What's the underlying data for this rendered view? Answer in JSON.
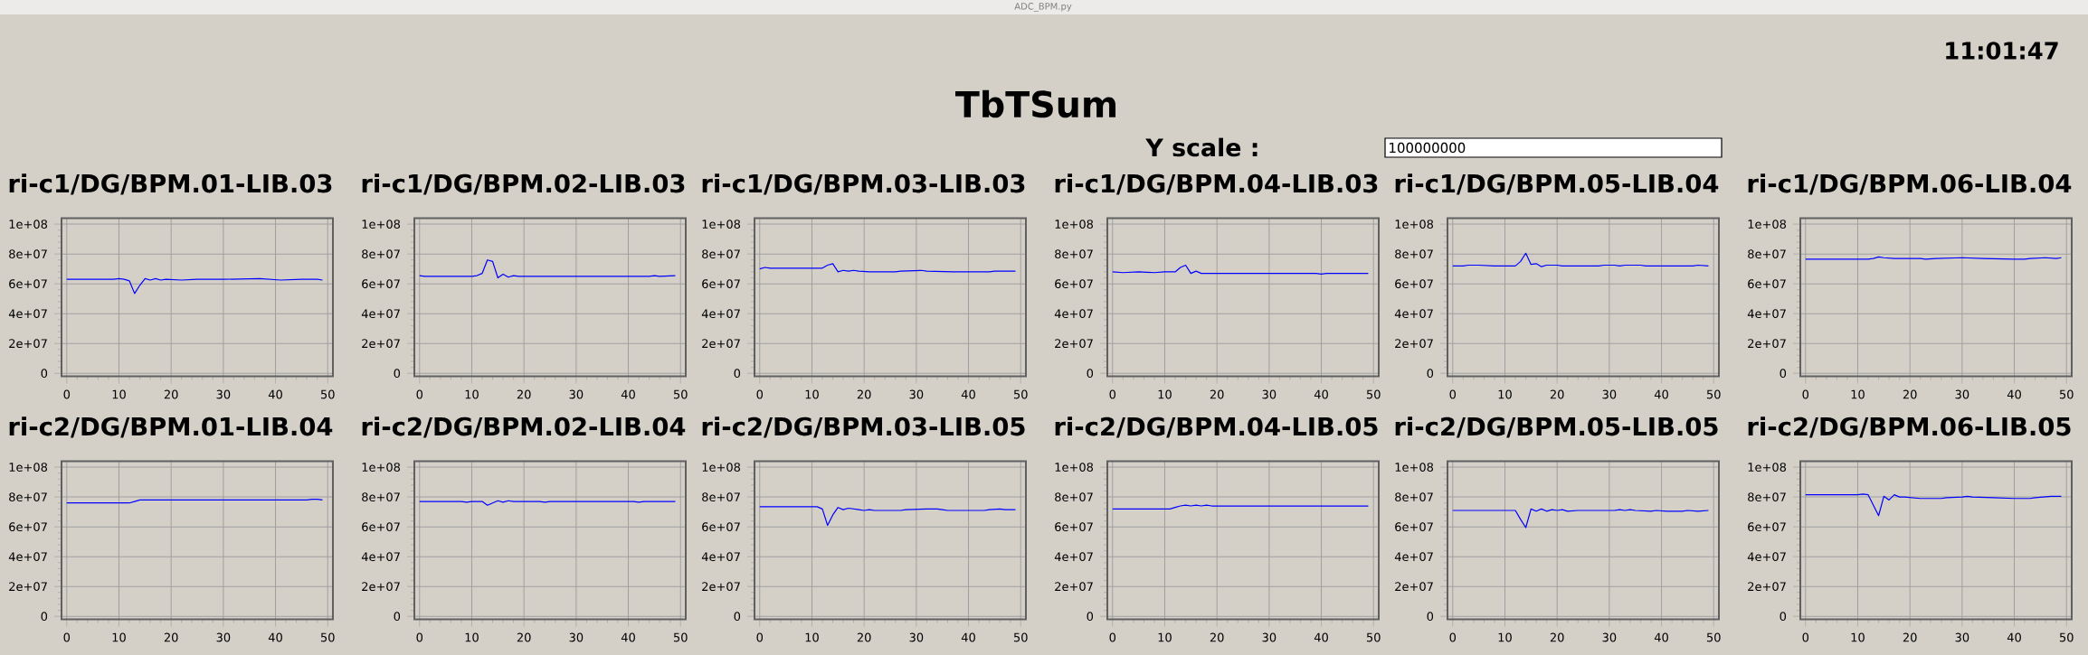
{
  "chart_data": [
    {
      "type": "other",
      "title": "TbTSum",
      "annotations": [
        "ADC_BPM.py",
        "11:01:47",
        "Y scale :",
        "100000000"
      ]
    },
    {
      "type": "line",
      "title": "ri-c1/DG/BPM.01-LIB.03",
      "color": "#0000ff",
      "grid": true,
      "xlim": [
        -1,
        51
      ],
      "ylim": [
        -2000000.0,
        104000000.0
      ],
      "xticks": [
        0,
        10,
        20,
        30,
        40,
        50
      ],
      "yticks": [
        0,
        {
          "value": 20000000.0,
          "label": "2e+07"
        },
        {
          "value": 40000000.0,
          "label": "4e+07"
        },
        {
          "value": 60000000.0,
          "label": "6e+07"
        },
        {
          "value": 80000000.0,
          "label": "8e+07"
        },
        {
          "value": 100000000.0,
          "label": "1e+08"
        }
      ],
      "x": [
        0,
        9,
        10,
        11,
        12,
        13,
        14,
        15,
        16,
        17,
        18,
        19,
        22,
        25,
        30,
        37,
        41,
        45,
        48,
        49
      ],
      "values": [
        63000000.0,
        63000000.0,
        63500000.0,
        63000000.0,
        62000000.0,
        53500000.0,
        59000000.0,
        63500000.0,
        62500000.0,
        63500000.0,
        62500000.0,
        63000000.0,
        62500000.0,
        63000000.0,
        63000000.0,
        63500000.0,
        62500000.0,
        63000000.0,
        63000000.0,
        62500000.0
      ]
    },
    {
      "type": "line",
      "title": "ri-c1/DG/BPM.02-LIB.03",
      "color": "#0000ff",
      "grid": true,
      "xlim": [
        -1,
        51
      ],
      "ylim": [
        -2000000.0,
        104000000.0
      ],
      "xticks": [
        0,
        10,
        20,
        30,
        40,
        50
      ],
      "yticks": [
        0,
        {
          "value": 20000000.0,
          "label": "2e+07"
        },
        {
          "value": 40000000.0,
          "label": "4e+07"
        },
        {
          "value": 60000000.0,
          "label": "6e+07"
        },
        {
          "value": 80000000.0,
          "label": "8e+07"
        },
        {
          "value": 100000000.0,
          "label": "1e+08"
        }
      ],
      "x": [
        0,
        1,
        10,
        11,
        12,
        13,
        14,
        15,
        16,
        17,
        18,
        19,
        44,
        45,
        46,
        49
      ],
      "values": [
        65500000.0,
        65000000.0,
        65000000.0,
        65500000.0,
        67000000.0,
        76000000.0,
        75000000.0,
        64000000.0,
        66500000.0,
        64500000.0,
        65500000.0,
        65000000.0,
        65000000.0,
        65500000.0,
        65000000.0,
        65500000.0
      ]
    },
    {
      "type": "line",
      "title": "ri-c1/DG/BPM.03-LIB.03",
      "color": "#0000ff",
      "grid": true,
      "xlim": [
        -1,
        51
      ],
      "ylim": [
        -2000000.0,
        104000000.0
      ],
      "xticks": [
        0,
        10,
        20,
        30,
        40,
        50
      ],
      "yticks": [
        0,
        {
          "value": 20000000.0,
          "label": "2e+07"
        },
        {
          "value": 40000000.0,
          "label": "4e+07"
        },
        {
          "value": 60000000.0,
          "label": "6e+07"
        },
        {
          "value": 80000000.0,
          "label": "8e+07"
        },
        {
          "value": 100000000.0,
          "label": "1e+08"
        }
      ],
      "x": [
        0,
        1,
        2,
        12,
        13,
        14,
        15,
        16,
        17,
        18,
        19,
        21,
        26,
        27,
        31,
        32,
        37,
        44,
        45,
        49
      ],
      "values": [
        70000000.0,
        71000000.0,
        70500000.0,
        70500000.0,
        72500000.0,
        73500000.0,
        68000000.0,
        69000000.0,
        68500000.0,
        69000000.0,
        68500000.0,
        68000000.0,
        68000000.0,
        68500000.0,
        69000000.0,
        68500000.0,
        68000000.0,
        68000000.0,
        68500000.0,
        68500000.0
      ]
    },
    {
      "type": "line",
      "title": "ri-c1/DG/BPM.04-LIB.03",
      "color": "#0000ff",
      "grid": true,
      "xlim": [
        -1,
        51
      ],
      "ylim": [
        -2000000.0,
        104000000.0
      ],
      "xticks": [
        0,
        10,
        20,
        30,
        40,
        50
      ],
      "yticks": [
        0,
        {
          "value": 20000000.0,
          "label": "2e+07"
        },
        {
          "value": 40000000.0,
          "label": "4e+07"
        },
        {
          "value": 60000000.0,
          "label": "6e+07"
        },
        {
          "value": 80000000.0,
          "label": "8e+07"
        },
        {
          "value": 100000000.0,
          "label": "1e+08"
        }
      ],
      "x": [
        0,
        2,
        5,
        8,
        10,
        12,
        13,
        14,
        15,
        16,
        17,
        39,
        40,
        41,
        49
      ],
      "values": [
        68000000.0,
        67500000.0,
        68000000.0,
        67500000.0,
        68000000.0,
        68000000.0,
        71000000.0,
        72500000.0,
        67000000.0,
        68500000.0,
        67000000.0,
        67000000.0,
        66500000.0,
        67000000.0,
        67000000.0
      ]
    },
    {
      "type": "line",
      "title": "ri-c1/DG/BPM.05-LIB.04",
      "color": "#0000ff",
      "grid": true,
      "xlim": [
        -1,
        51
      ],
      "ylim": [
        -2000000.0,
        104000000.0
      ],
      "xticks": [
        0,
        10,
        20,
        30,
        40,
        50
      ],
      "yticks": [
        0,
        {
          "value": 20000000.0,
          "label": "2e+07"
        },
        {
          "value": 40000000.0,
          "label": "4e+07"
        },
        {
          "value": 60000000.0,
          "label": "6e+07"
        },
        {
          "value": 80000000.0,
          "label": "8e+07"
        },
        {
          "value": 100000000.0,
          "label": "1e+08"
        }
      ],
      "x": [
        0,
        2,
        3,
        5,
        8,
        12,
        13,
        14,
        15,
        16,
        17,
        18,
        20,
        21,
        28,
        29,
        31,
        32,
        33,
        36,
        37,
        46,
        47,
        49
      ],
      "values": [
        72000000.0,
        72000000.0,
        72500000.0,
        72500000.0,
        72000000.0,
        72000000.0,
        75000000.0,
        80500000.0,
        73000000.0,
        73500000.0,
        71500000.0,
        72500000.0,
        72500000.0,
        72000000.0,
        72000000.0,
        72500000.0,
        72500000.0,
        72000000.0,
        72500000.0,
        72500000.0,
        72000000.0,
        72000000.0,
        72500000.0,
        72000000.0
      ]
    },
    {
      "type": "line",
      "title": "ri-c1/DG/BPM.06-LIB.04",
      "color": "#0000ff",
      "grid": true,
      "xlim": [
        -1,
        51
      ],
      "ylim": [
        -2000000.0,
        104000000.0
      ],
      "xticks": [
        0,
        10,
        20,
        30,
        40,
        50
      ],
      "yticks": [
        0,
        {
          "value": 20000000.0,
          "label": "2e+07"
        },
        {
          "value": 40000000.0,
          "label": "4e+07"
        },
        {
          "value": 60000000.0,
          "label": "6e+07"
        },
        {
          "value": 80000000.0,
          "label": "8e+07"
        },
        {
          "value": 100000000.0,
          "label": "1e+08"
        }
      ],
      "x": [
        0,
        12,
        13,
        14,
        15,
        17,
        22,
        23,
        25,
        30,
        34,
        40,
        42,
        43,
        46,
        48,
        49
      ],
      "values": [
        76500000.0,
        76500000.0,
        77000000.0,
        78000000.0,
        77500000.0,
        77000000.0,
        77000000.0,
        76500000.0,
        77000000.0,
        77500000.0,
        77000000.0,
        76500000.0,
        76500000.0,
        77000000.0,
        77500000.0,
        77000000.0,
        77500000.0
      ]
    },
    {
      "type": "line",
      "title": "ri-c2/DG/BPM.01-LIB.04",
      "color": "#0000ff",
      "grid": true,
      "xlim": [
        -1,
        51
      ],
      "ylim": [
        -2000000.0,
        104000000.0
      ],
      "xticks": [
        0,
        10,
        20,
        30,
        40,
        50
      ],
      "yticks": [
        0,
        {
          "value": 20000000.0,
          "label": "2e+07"
        },
        {
          "value": 40000000.0,
          "label": "4e+07"
        },
        {
          "value": 60000000.0,
          "label": "6e+07"
        },
        {
          "value": 80000000.0,
          "label": "8e+07"
        },
        {
          "value": 100000000.0,
          "label": "1e+08"
        }
      ],
      "x": [
        0,
        12,
        13,
        14,
        46,
        47,
        48,
        49
      ],
      "values": [
        76000000.0,
        76000000.0,
        77000000.0,
        78000000.0,
        78000000.0,
        78500000.0,
        78500000.0,
        78000000.0
      ]
    },
    {
      "type": "line",
      "title": "ri-c2/DG/BPM.02-LIB.04",
      "color": "#0000ff",
      "grid": true,
      "xlim": [
        -1,
        51
      ],
      "ylim": [
        -2000000.0,
        104000000.0
      ],
      "xticks": [
        0,
        10,
        20,
        30,
        40,
        50
      ],
      "yticks": [
        0,
        {
          "value": 20000000.0,
          "label": "2e+07"
        },
        {
          "value": 40000000.0,
          "label": "4e+07"
        },
        {
          "value": 60000000.0,
          "label": "6e+07"
        },
        {
          "value": 80000000.0,
          "label": "8e+07"
        },
        {
          "value": 100000000.0,
          "label": "1e+08"
        }
      ],
      "x": [
        0,
        8,
        9,
        10,
        12,
        13,
        14,
        15,
        16,
        17,
        18,
        23,
        24,
        25,
        41,
        42,
        43,
        49
      ],
      "values": [
        77000000.0,
        77000000.0,
        76500000.0,
        77000000.0,
        77000000.0,
        74500000.0,
        76000000.0,
        77500000.0,
        76500000.0,
        77500000.0,
        77000000.0,
        77000000.0,
        76500000.0,
        77000000.0,
        77000000.0,
        76500000.0,
        77000000.0,
        77000000.0
      ]
    },
    {
      "type": "line",
      "title": "ri-c2/DG/BPM.03-LIB.05",
      "color": "#0000ff",
      "grid": true,
      "xlim": [
        -1,
        51
      ],
      "ylim": [
        -2000000.0,
        104000000.0
      ],
      "xticks": [
        0,
        10,
        20,
        30,
        40,
        50
      ],
      "yticks": [
        0,
        {
          "value": 20000000.0,
          "label": "2e+07"
        },
        {
          "value": 40000000.0,
          "label": "4e+07"
        },
        {
          "value": 60000000.0,
          "label": "6e+07"
        },
        {
          "value": 80000000.0,
          "label": "8e+07"
        },
        {
          "value": 100000000.0,
          "label": "1e+08"
        }
      ],
      "x": [
        0,
        11,
        12,
        13,
        14,
        15,
        16,
        17,
        19,
        20,
        21,
        22,
        27,
        28,
        32,
        34,
        35,
        36,
        43,
        44,
        46,
        47,
        49
      ],
      "values": [
        73500000.0,
        73500000.0,
        72000000.0,
        61000000.0,
        68000000.0,
        73000000.0,
        71500000.0,
        72500000.0,
        71500000.0,
        71000000.0,
        71500000.0,
        71000000.0,
        71000000.0,
        71500000.0,
        72000000.0,
        72000000.0,
        71500000.0,
        71000000.0,
        71000000.0,
        71500000.0,
        72000000.0,
        71500000.0,
        71500000.0
      ]
    },
    {
      "type": "line",
      "title": "ri-c2/DG/BPM.04-LIB.05",
      "color": "#0000ff",
      "grid": true,
      "xlim": [
        -1,
        51
      ],
      "ylim": [
        -2000000.0,
        104000000.0
      ],
      "xticks": [
        0,
        10,
        20,
        30,
        40,
        50
      ],
      "yticks": [
        0,
        {
          "value": 20000000.0,
          "label": "2e+07"
        },
        {
          "value": 40000000.0,
          "label": "4e+07"
        },
        {
          "value": 60000000.0,
          "label": "6e+07"
        },
        {
          "value": 80000000.0,
          "label": "8e+07"
        },
        {
          "value": 100000000.0,
          "label": "1e+08"
        }
      ],
      "x": [
        0,
        11,
        12,
        13,
        14,
        15,
        16,
        17,
        18,
        19,
        49
      ],
      "values": [
        72000000.0,
        72000000.0,
        73000000.0,
        74000000.0,
        74500000.0,
        74000000.0,
        74500000.0,
        74000000.0,
        74500000.0,
        74000000.0,
        74000000.0
      ]
    },
    {
      "type": "line",
      "title": "ri-c2/DG/BPM.05-LIB.05",
      "color": "#0000ff",
      "grid": true,
      "xlim": [
        -1,
        51
      ],
      "ylim": [
        -2000000.0,
        104000000.0
      ],
      "xticks": [
        0,
        10,
        20,
        30,
        40,
        50
      ],
      "yticks": [
        0,
        {
          "value": 20000000.0,
          "label": "2e+07"
        },
        {
          "value": 40000000.0,
          "label": "4e+07"
        },
        {
          "value": 60000000.0,
          "label": "6e+07"
        },
        {
          "value": 80000000.0,
          "label": "8e+07"
        },
        {
          "value": 100000000.0,
          "label": "1e+08"
        }
      ],
      "x": [
        0,
        12,
        13,
        14,
        15,
        16,
        17,
        18,
        19,
        20,
        21,
        22,
        24,
        31,
        32,
        33,
        34,
        35,
        38,
        39,
        41,
        44,
        45,
        47,
        49
      ],
      "values": [
        71000000.0,
        71000000.0,
        65000000.0,
        59500000.0,
        72000000.0,
        70500000.0,
        72000000.0,
        70500000.0,
        71500000.0,
        71000000.0,
        71500000.0,
        70500000.0,
        71000000.0,
        71000000.0,
        71500000.0,
        71000000.0,
        71500000.0,
        71000000.0,
        70500000.0,
        71000000.0,
        70500000.0,
        70500000.0,
        71000000.0,
        70500000.0,
        71000000.0
      ]
    },
    {
      "type": "line",
      "title": "ri-c2/DG/BPM.06-LIB.05",
      "color": "#0000ff",
      "grid": true,
      "xlim": [
        -1,
        51
      ],
      "ylim": [
        -2000000.0,
        104000000.0
      ],
      "xticks": [
        0,
        10,
        20,
        30,
        40,
        50
      ],
      "yticks": [
        0,
        {
          "value": 20000000.0,
          "label": "2e+07"
        },
        {
          "value": 40000000.0,
          "label": "4e+07"
        },
        {
          "value": 60000000.0,
          "label": "6e+07"
        },
        {
          "value": 80000000.0,
          "label": "8e+07"
        },
        {
          "value": 100000000.0,
          "label": "1e+08"
        }
      ],
      "x": [
        0,
        10,
        11,
        12,
        14,
        15,
        16,
        17,
        18,
        19,
        22,
        26,
        27,
        30,
        31,
        32,
        36,
        40,
        43,
        44,
        47,
        49
      ],
      "values": [
        81500000.0,
        81500000.0,
        82000000.0,
        81500000.0,
        67500000.0,
        80500000.0,
        78000000.0,
        81500000.0,
        80000000.0,
        80000000.0,
        79000000.0,
        79000000.0,
        79500000.0,
        80000000.0,
        80500000.0,
        80000000.0,
        79500000.0,
        79000000.0,
        79000000.0,
        79500000.0,
        80500000.0,
        80500000.0
      ]
    }
  ]
}
